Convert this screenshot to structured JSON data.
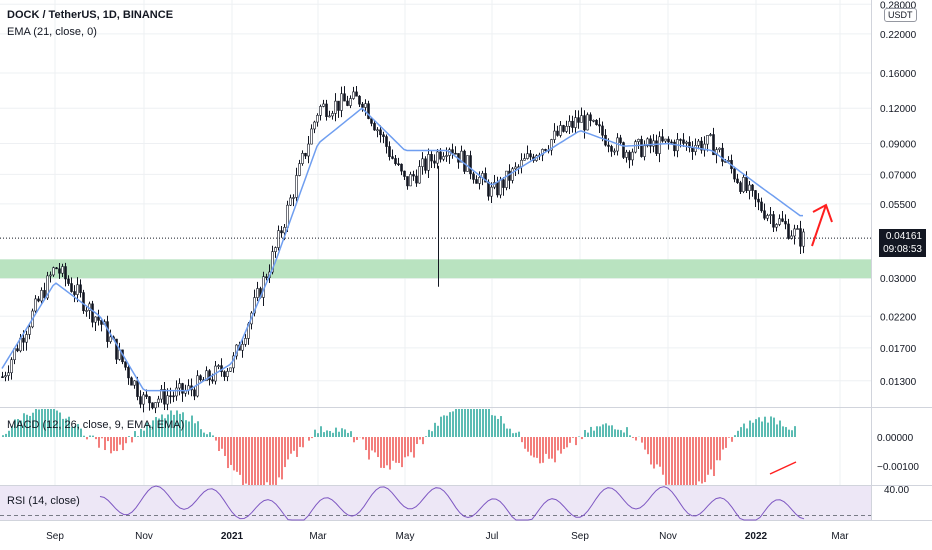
{
  "header": {
    "symbol": "DOCK / TetherUS, 1D, BINANCE",
    "ema_label": "EMA (21, close, 0)",
    "macd_label": "MACD (12, 26, close, 9, EMA, EMA)",
    "rsi_label": "RSI (14, close)"
  },
  "price_axis": {
    "unit": "USDT",
    "scale": "log",
    "ticks": [
      "0.28000",
      "0.22000",
      "0.16000",
      "0.12000",
      "0.09000",
      "0.07000",
      "0.05500",
      "0.04161",
      "0.03000",
      "0.02200",
      "0.01700",
      "0.01300"
    ],
    "tick_values": [
      0.28,
      0.22,
      0.16,
      0.12,
      0.09,
      0.07,
      0.055,
      0.03,
      0.022,
      0.017,
      0.013
    ],
    "range": [
      0.0105,
      0.29
    ]
  },
  "last_price": {
    "value": "0.04161",
    "countdown": "09:08:53"
  },
  "macd_axis": {
    "ticks": [
      "0.00000",
      "−0.00100"
    ]
  },
  "rsi_axis": {
    "ticks": [
      "40.00"
    ]
  },
  "time_axis": {
    "labels": [
      "Sep",
      "Nov",
      "2021",
      "Mar",
      "May",
      "Jul",
      "Sep",
      "Nov",
      "2022",
      "Mar"
    ]
  },
  "colors": {
    "up": "#26a69a",
    "down": "#ef5350",
    "ema": "#6f9ef0",
    "support_zone": "#b9e3c0",
    "rsi_band": "#ede7f6",
    "rsi_line": "#7e57c2",
    "annotation": "#ff1f1f",
    "candle": "#131722"
  },
  "chart_data": {
    "type": "candlestick",
    "title": "DOCK / TetherUS, 1D, BINANCE",
    "x": [
      "2020-08",
      "2020-09",
      "2020-10",
      "2020-11",
      "2020-12",
      "2021-01",
      "2021-02",
      "2021-03",
      "2021-04",
      "2021-05",
      "2021-06",
      "2021-07",
      "2021-08",
      "2021-09",
      "2021-10",
      "2021-11",
      "2021-12",
      "2022-01",
      "2022-02"
    ],
    "series": [
      {
        "name": "price_close",
        "values": [
          0.013,
          0.033,
          0.021,
          0.011,
          0.012,
          0.015,
          0.038,
          0.12,
          0.13,
          0.065,
          0.09,
          0.06,
          0.085,
          0.11,
          0.085,
          0.09,
          0.09,
          0.055,
          0.0416
        ]
      },
      {
        "name": "EMA (21, close, 0)",
        "values": [
          0.014,
          0.029,
          0.022,
          0.012,
          0.012,
          0.015,
          0.034,
          0.09,
          0.12,
          0.085,
          0.085,
          0.064,
          0.08,
          0.1,
          0.088,
          0.09,
          0.085,
          0.065,
          0.05
        ]
      }
    ],
    "support_zone": [
      0.03,
      0.035
    ],
    "last_price": 0.04161
  }
}
